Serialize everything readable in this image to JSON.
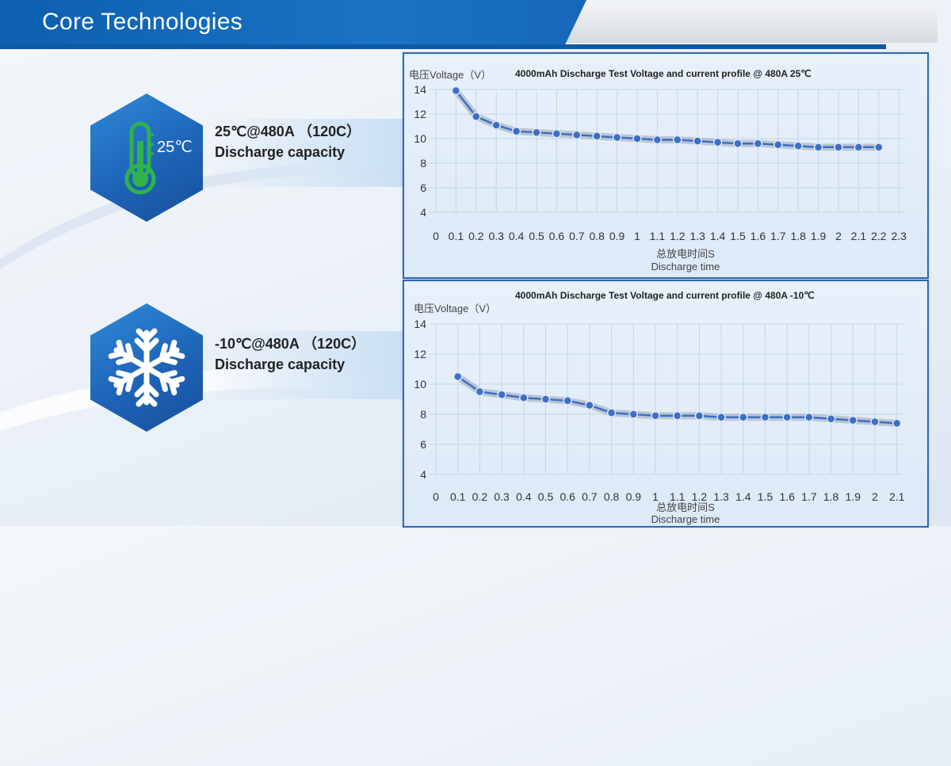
{
  "header": {
    "title": "Core Technologies"
  },
  "items": [
    {
      "icon": "thermometer-icon",
      "badge": "25℃",
      "caption_line1": "25℃@480A （120C）",
      "caption_line2": "Discharge capacity"
    },
    {
      "icon": "snowflake-icon",
      "caption_line1": "-10℃@480A （120C）",
      "caption_line2": "Discharge capacity"
    }
  ],
  "colors": {
    "brand": "#1a6fc2",
    "series": "#3d6fc4"
  },
  "chart_data": [
    {
      "type": "line",
      "title": "4000mAh Discharge Test Voltage and current profile @ 480A 25℃",
      "ylabel": "电压Voltage（V）",
      "xlabel_cn": "总放电时间S",
      "xlabel": "Discharge time",
      "ylim": [
        4,
        14
      ],
      "yticks": [
        4,
        6,
        8,
        10,
        12,
        14
      ],
      "xticks": [
        "0",
        "0.1",
        "0.2",
        "0.3",
        "0.4",
        "0.5",
        "0.6",
        "0.7",
        "0.8",
        "0.9",
        "1",
        "1.1",
        "1.2",
        "1.3",
        "1.4",
        "1.5",
        "1.6",
        "1.7",
        "1.8",
        "1.9",
        "2",
        "2.1",
        "2.2",
        "2.3"
      ],
      "grid": true,
      "series": [
        {
          "x": [
            0.1,
            0.2,
            0.3,
            0.4,
            0.5,
            0.6,
            0.7,
            0.8,
            0.9,
            1.0,
            1.1,
            1.2,
            1.3,
            1.4,
            1.5,
            1.6,
            1.7,
            1.8,
            1.9,
            2.0,
            2.1,
            2.2
          ],
          "values": [
            13.9,
            11.8,
            11.1,
            10.6,
            10.5,
            10.4,
            10.3,
            10.2,
            10.1,
            10.0,
            9.9,
            9.9,
            9.8,
            9.7,
            9.6,
            9.6,
            9.5,
            9.4,
            9.3,
            9.3,
            9.3,
            9.3
          ]
        }
      ]
    },
    {
      "type": "line",
      "title": "4000mAh Discharge Test Voltage and current profile @ 480A -10℃",
      "ylabel": "电压Voltage（V）",
      "xlabel_cn": "总放电时间S",
      "xlabel": "Discharge time",
      "ylim": [
        4,
        14
      ],
      "yticks": [
        4,
        6,
        8,
        10,
        12,
        14
      ],
      "xticks": [
        "0",
        "0.1",
        "0.2",
        "0.3",
        "0.4",
        "0.5",
        "0.6",
        "0.7",
        "0.8",
        "0.9",
        "1",
        "1.1",
        "1.2",
        "1.3",
        "1.4",
        "1.5",
        "1.6",
        "1.7",
        "1.8",
        "1.9",
        "2",
        "2.1"
      ],
      "grid": true,
      "series": [
        {
          "x": [
            0.1,
            0.2,
            0.3,
            0.4,
            0.5,
            0.6,
            0.7,
            0.8,
            0.9,
            1.0,
            1.1,
            1.2,
            1.3,
            1.4,
            1.5,
            1.6,
            1.7,
            1.8,
            1.9,
            2.0,
            2.1
          ],
          "values": [
            10.5,
            9.5,
            9.3,
            9.1,
            9.0,
            8.9,
            8.6,
            8.1,
            8.0,
            7.9,
            7.9,
            7.9,
            7.8,
            7.8,
            7.8,
            7.8,
            7.8,
            7.7,
            7.6,
            7.5,
            7.4
          ]
        }
      ]
    }
  ]
}
